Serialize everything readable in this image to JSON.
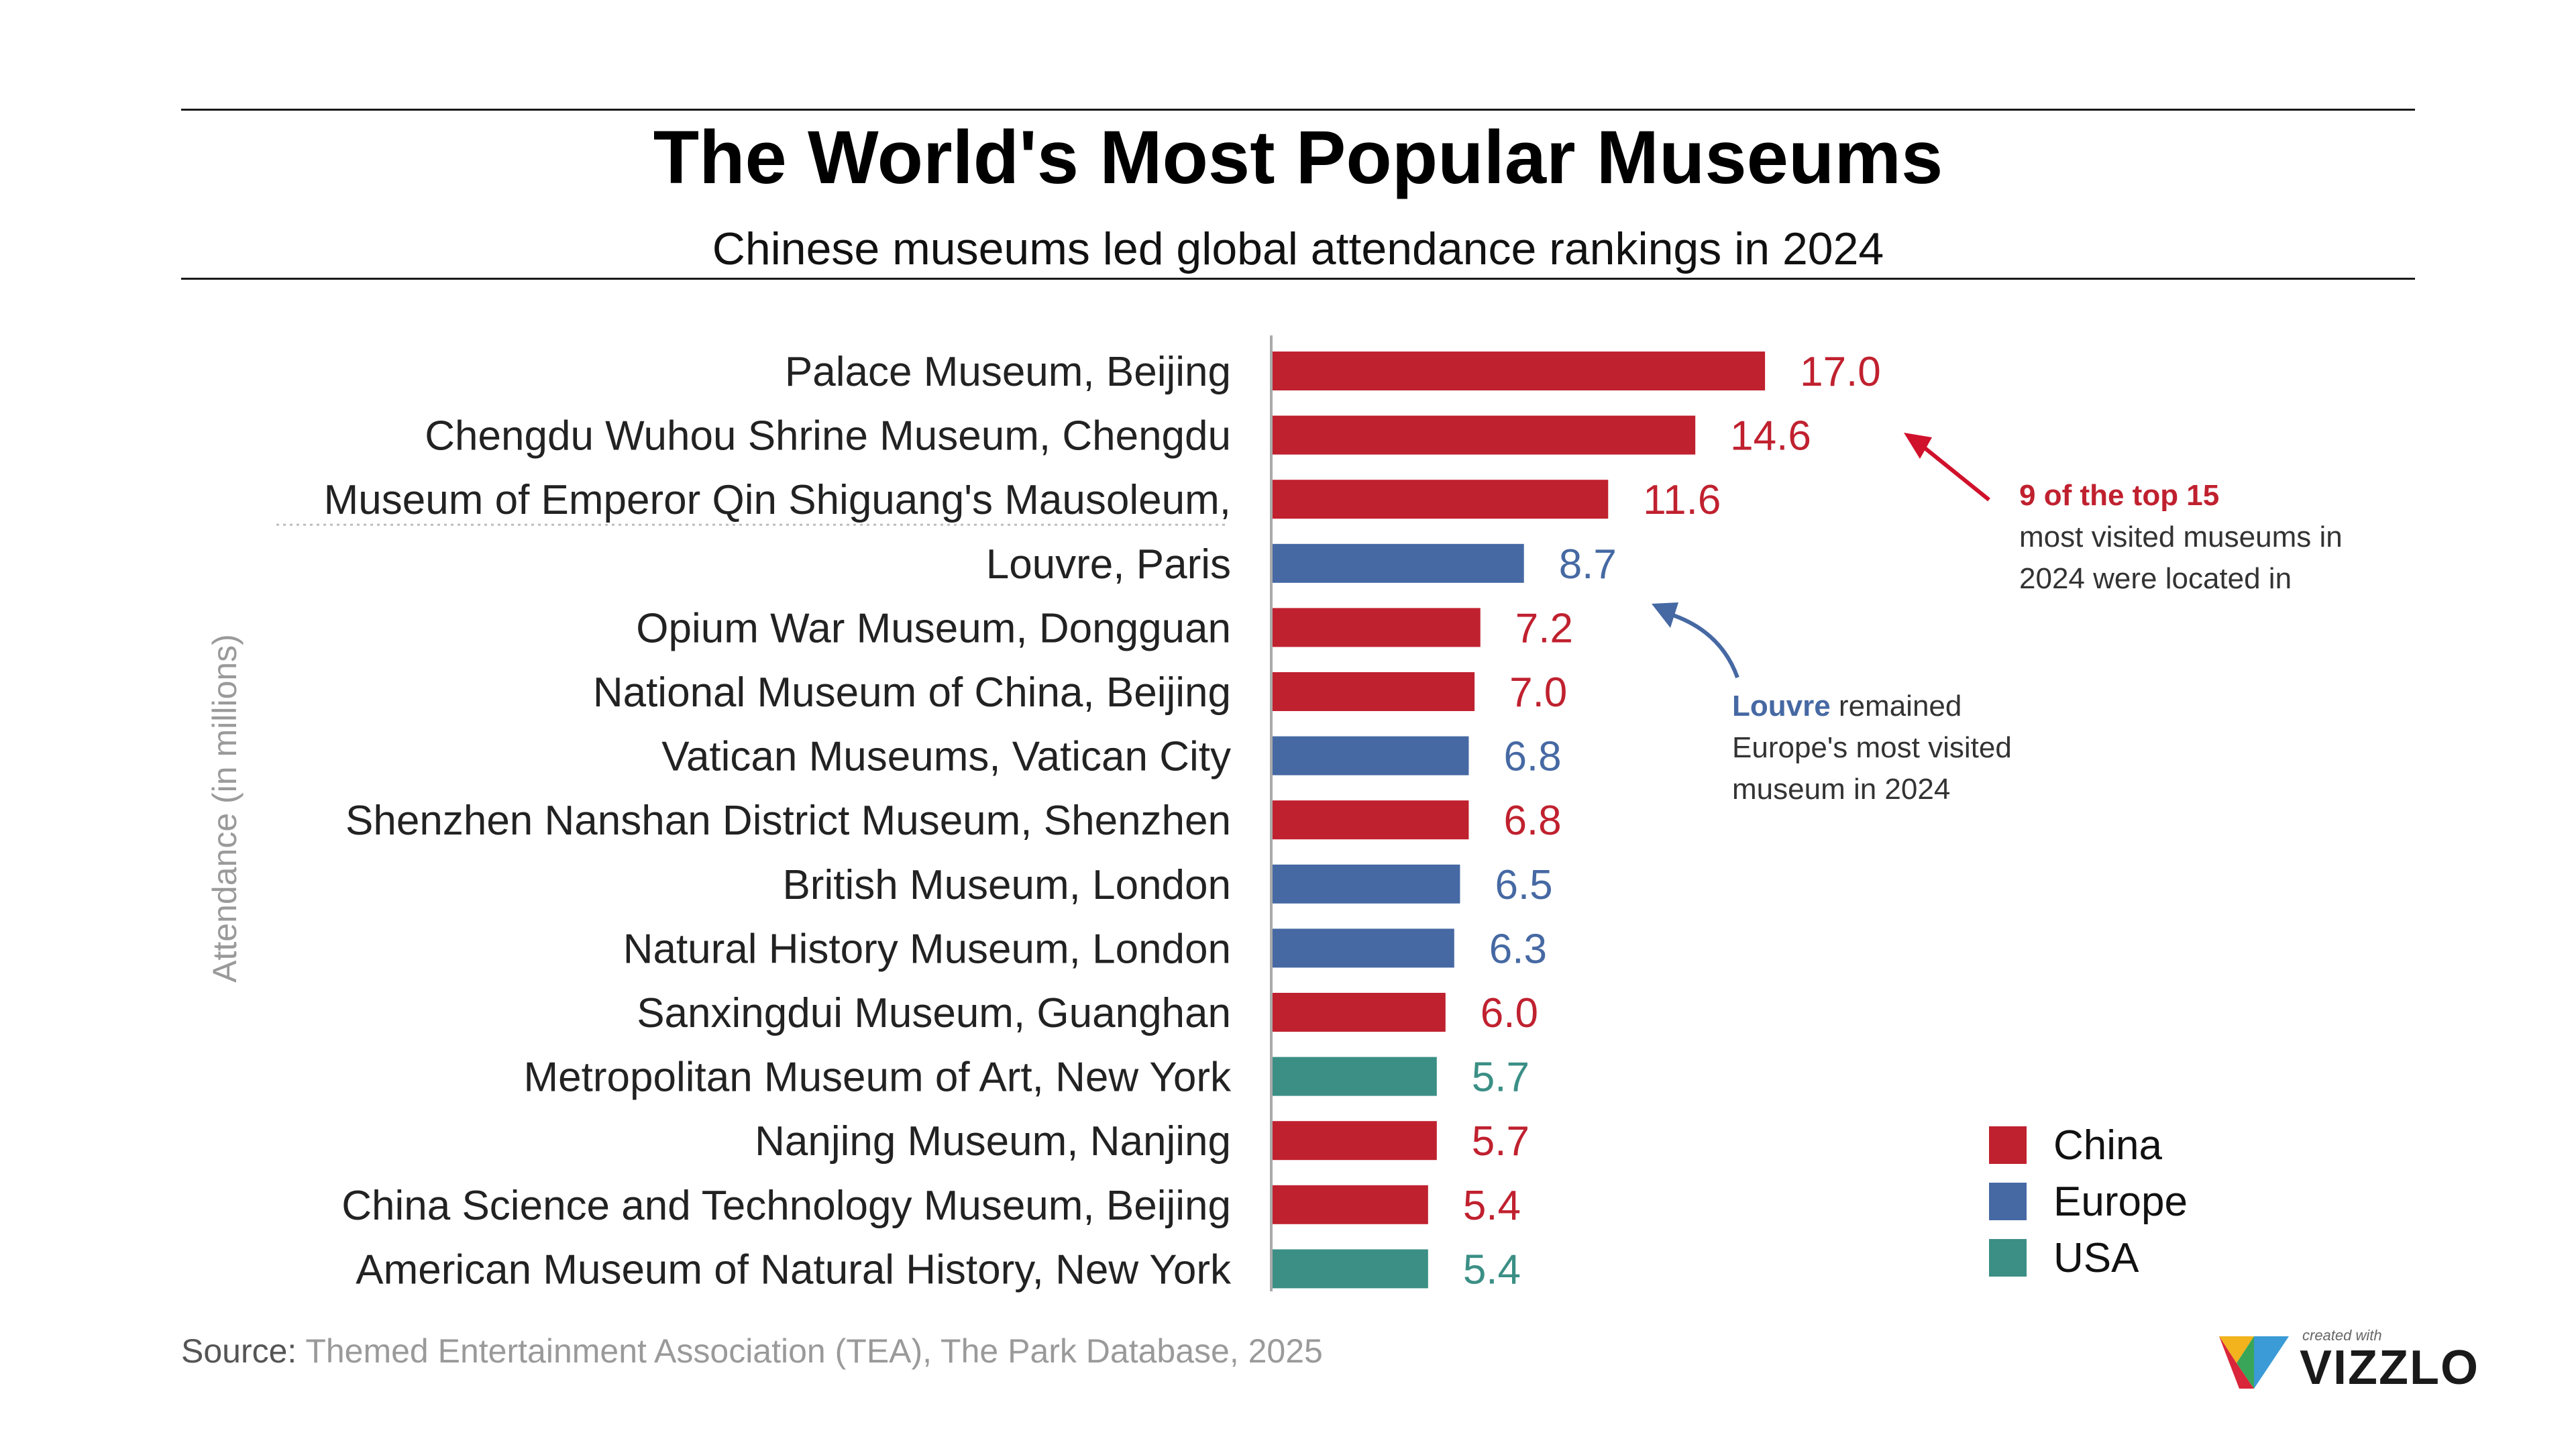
{
  "header": {
    "title": "The World's Most Popular Museums",
    "subtitle": "Chinese museums led global attendance rankings in 2024"
  },
  "chart_data": {
    "type": "bar",
    "orientation": "horizontal",
    "ylabel": "Attendance (in millions)",
    "xlim": [
      0,
      20
    ],
    "grid": false,
    "legend_position": "bottom-right",
    "categories": [
      "Palace Museum, Beijing",
      "Chengdu Wuhou Shrine Museum, Chengdu",
      "Museum of Emperor Qin Shiguang's Mausoleum,",
      "Louvre, Paris",
      "Opium War Museum, Dongguan",
      "National Museum of China, Beijing",
      "Vatican Museums, Vatican City",
      "Shenzhen Nanshan District Museum, Shenzhen",
      "British Museum, London",
      "Natural History Museum, London",
      "Sanxingdui Museum, Guanghan",
      "Metropolitan Museum of Art, New York",
      "Nanjing Museum, Nanjing",
      "China Science and Technology Museum, Beijing",
      "American Museum of Natural History, New York"
    ],
    "values": [
      17.0,
      14.6,
      11.6,
      8.7,
      7.2,
      7.0,
      6.8,
      6.8,
      6.5,
      6.3,
      6.0,
      5.7,
      5.7,
      5.4,
      5.4
    ],
    "value_labels": [
      "17.0",
      "14.6",
      "11.6",
      "8.7",
      "7.2",
      "7.0",
      "6.8",
      "6.8",
      "6.5",
      "6.3",
      "6.0",
      "5.7",
      "5.7",
      "5.4",
      "5.4"
    ],
    "groups": [
      "China",
      "China",
      "China",
      "Europe",
      "China",
      "China",
      "Europe",
      "China",
      "Europe",
      "Europe",
      "China",
      "USA",
      "China",
      "China",
      "USA"
    ],
    "legend": [
      {
        "name": "China",
        "color": "#c0212f"
      },
      {
        "name": "Europe",
        "color": "#4669a3"
      },
      {
        "name": "USA",
        "color": "#3b8f85"
      }
    ]
  },
  "annotations": {
    "china": {
      "highlight": "9 of the top 15",
      "line1": "most visited museums in",
      "line2": "2024 were located in"
    },
    "europe": {
      "highlight": "Louvre",
      "line1_rest": " remained",
      "line2": "Europe's most visited",
      "line3": "museum in 2024"
    }
  },
  "footer": {
    "source_label": "Source:",
    "source_text": " Themed Entertainment Association (TEA), The Park Database, 2025",
    "brand_small": "created with",
    "brand_name": "VIZZLO"
  }
}
